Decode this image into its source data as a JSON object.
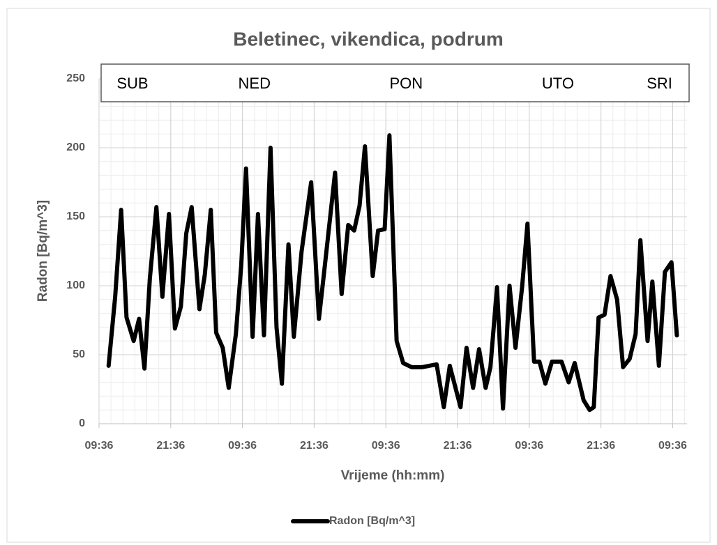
{
  "chart_data": {
    "type": "line",
    "title": "Beletinec, vikendica, podrum",
    "xlabel": "Vrijeme (hh:mm)",
    "ylabel": "Radon [Bq/m^3]",
    "day_labels": [
      {
        "text": "SUB",
        "x": 5.6
      },
      {
        "text": "NED",
        "x": 26
      },
      {
        "text": "PON",
        "x": 51.4
      },
      {
        "text": "UTO",
        "x": 76.8
      },
      {
        "text": "SRI",
        "x": 93.8
      }
    ],
    "x": [
      1.6,
      2.7,
      3.7,
      4.6,
      5.8,
      6.7,
      7.6,
      8.5,
      9.6,
      10.6,
      11.7,
      12.7,
      13.7,
      14.6,
      15.5,
      16.8,
      17.7,
      18.7,
      19.6,
      20.7,
      21.7,
      22.9,
      23.8,
      24.6,
      25.7,
      26.6,
      27.6,
      28.7,
      29.7,
      30.6,
      31.7,
      32.6,
      33.9,
      35.5,
      36.8,
      37.8,
      39.5,
      40.6,
      41.7,
      42.7,
      43.6,
      44.5,
      45.8,
      46.7,
      47.8,
      48.6,
      49.8,
      50.9,
      52.3,
      54.1,
      56.5,
      57.7,
      58.7,
      60.5,
      61.5,
      62.6,
      63.6,
      64.7,
      65.5,
      66.6,
      67.6,
      68.7,
      69.7,
      70.8,
      71.7,
      72.8,
      73.7,
      74.7,
      75.8,
      77.4,
      78.6,
      79.6,
      81.1,
      82.1,
      82.8,
      83.6,
      84.6,
      85.6,
      86.7,
      87.7,
      88.8,
      89.8,
      90.6,
      91.8,
      92.6,
      93.7,
      94.7,
      95.8,
      96.7
    ],
    "series": [
      {
        "name": "Radon [Bq/m^3]",
        "color": "#000000",
        "values": [
          42,
          92,
          155,
          77,
          60,
          76,
          40,
          105,
          157,
          92,
          152,
          69,
          85,
          138,
          157,
          83,
          108,
          155,
          66,
          55,
          26,
          65,
          115,
          185,
          63,
          152,
          64,
          200,
          70,
          29,
          130,
          63,
          125,
          175,
          76,
          115,
          182,
          94,
          144,
          140,
          158,
          201,
          107,
          140,
          141,
          209,
          60,
          44,
          41,
          41,
          43,
          12,
          42,
          12,
          55,
          26,
          54,
          26,
          41,
          99,
          11,
          100,
          55,
          99,
          145,
          45,
          45,
          29,
          45,
          45,
          30,
          44,
          17,
          10,
          12,
          77,
          79,
          107,
          90,
          41,
          47,
          65,
          133,
          60,
          103,
          42,
          110,
          117,
          64
        ]
      }
    ],
    "xlim": [
      0,
      98.4
    ],
    "xticks": [
      {
        "value": 0,
        "label": "09:36"
      },
      {
        "value": 12,
        "label": "21:36"
      },
      {
        "value": 24,
        "label": "09:36"
      },
      {
        "value": 36,
        "label": "21:36"
      },
      {
        "value": 48,
        "label": "09:36"
      },
      {
        "value": 60,
        "label": "21:36"
      },
      {
        "value": 72,
        "label": "09:36"
      },
      {
        "value": 84,
        "label": "21:36"
      },
      {
        "value": 96,
        "label": "09:36"
      }
    ],
    "ylim": [
      0,
      250
    ],
    "yticks": [
      0,
      50,
      100,
      150,
      200,
      250
    ],
    "grid": true,
    "minor_grid": true,
    "legend": "bottom"
  }
}
